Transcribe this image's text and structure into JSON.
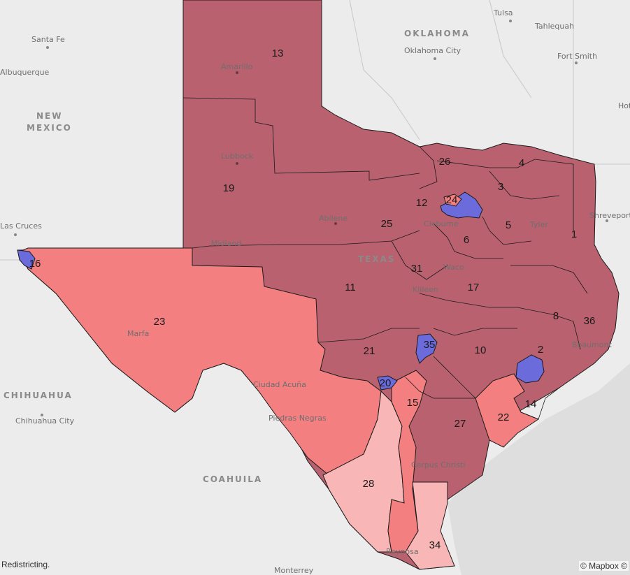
{
  "colors": {
    "background": "#ebebeb",
    "water": "#dedede",
    "safe_republican": "#b9616f",
    "lean_republican": "#f47f80",
    "tilt_republican": "#f8b6b6",
    "democratic": "#6b6bdc",
    "border": "#1a1a1a"
  },
  "places": {
    "santa_fe": "Santa Fe",
    "albuquerque": "Albuquerque",
    "new_mexico_1": "NEW",
    "new_mexico_2": "MEXICO",
    "las_cruces": "Las Cruces",
    "oklahoma": "OKLAHOMA",
    "oklahoma_city": "Oklahoma City",
    "tulsa": "Tulsa",
    "tahlequah": "Tahlequah",
    "fort_smith": "Fort Smith",
    "hot": "Hot",
    "shreveport": "Shreveport",
    "amarillo": "Amarillo",
    "lubbock": "Lubbock",
    "abilene": "Abilene",
    "midland": "Midland",
    "texas": "TEXAS",
    "waco": "Waco",
    "killeen": "Killeen",
    "cleburne": "Cleburne",
    "tyler": "Tyler",
    "beaumont": "Beaumont",
    "marfa": "Marfa",
    "ciudad_acuna": "Ciudad Acuña",
    "piedras_negras": "Piedras Negras",
    "chihuahua": "CHIHUAHUA",
    "chihuahua_city": "Chihuahua City",
    "coahuila": "COAHUILA",
    "corpus_christi": "Corpus Christi",
    "monterrey": "Monterrey",
    "reynosa": "Reynosa"
  },
  "districts": [
    {
      "label": "13"
    },
    {
      "label": "19"
    },
    {
      "label": "26"
    },
    {
      "label": "4"
    },
    {
      "label": "3"
    },
    {
      "label": "24"
    },
    {
      "label": "12"
    },
    {
      "label": "25"
    },
    {
      "label": "5"
    },
    {
      "label": "1"
    },
    {
      "label": "6"
    },
    {
      "label": "16"
    },
    {
      "label": "31"
    },
    {
      "label": "11"
    },
    {
      "label": "17"
    },
    {
      "label": "23"
    },
    {
      "label": "8"
    },
    {
      "label": "36"
    },
    {
      "label": "35"
    },
    {
      "label": "21"
    },
    {
      "label": "10"
    },
    {
      "label": "2"
    },
    {
      "label": "20"
    },
    {
      "label": "15"
    },
    {
      "label": "14"
    },
    {
      "label": "22"
    },
    {
      "label": "27"
    },
    {
      "label": "28"
    },
    {
      "label": "34"
    }
  ],
  "footer": {
    "left_text": "Redistricting.",
    "attribution": "© Mapbox ©"
  }
}
